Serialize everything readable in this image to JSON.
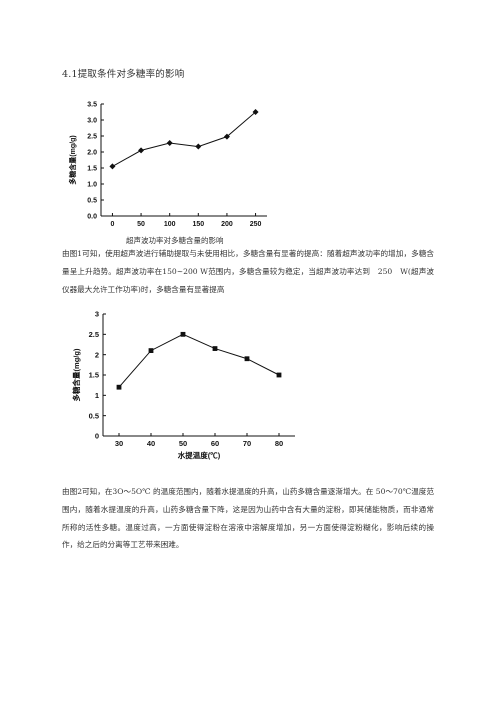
{
  "heading": "4.1提取条件对多糖率的影响",
  "figure1": {
    "caption": "超声波功率对多糖含量的影响",
    "chart_data": {
      "type": "line",
      "title": "",
      "xlabel": "",
      "ylabel": "多糖含量(mg/g)",
      "x": [
        0,
        50,
        100,
        150,
        200,
        250
      ],
      "series": [
        {
          "values": [
            1.55,
            2.05,
            2.28,
            2.17,
            2.48,
            3.25
          ]
        }
      ],
      "xticks": [
        "0",
        "50",
        "100",
        "150",
        "200",
        "250"
      ],
      "yticks": [
        "0.0",
        "0.5",
        "1.0",
        "1.5",
        "2.0",
        "2.5",
        "3.0",
        "3.5"
      ],
      "xlim": [
        -20,
        270
      ],
      "ylim": [
        0,
        3.5
      ],
      "marker": "diamond",
      "grid": false
    }
  },
  "paragraph1": "由图1可知，使用超声波进行辅助提取与未使用相比，多糖含量有显著的提高：随着超声波功率的增加，多糖含量呈上升趋势。超声波功率在150~200 W范围内，多糖含量较为稳定，当超声波功率达到　250　W(超声波仪器最大允许工作功率)时，多糖含量有显著提高",
  "figure2": {
    "chart_data": {
      "type": "line",
      "title": "",
      "xlabel": "水提温度(℃)",
      "ylabel": "多糖含量(mg/g)",
      "x": [
        30,
        40,
        50,
        60,
        70,
        80
      ],
      "series": [
        {
          "values": [
            1.2,
            2.1,
            2.5,
            2.15,
            1.9,
            1.5
          ]
        }
      ],
      "xticks": [
        "30",
        "40",
        "50",
        "60",
        "70",
        "80"
      ],
      "yticks": [
        "0",
        "0.5",
        "1",
        "1.5",
        "2",
        "2.5",
        "3"
      ],
      "xlim": [
        25,
        85
      ],
      "ylim": [
        0,
        3
      ],
      "marker": "square",
      "grid": false
    }
  },
  "paragraph2": "由图2可知，在3O～5O℃ 的温度范围内，随着水提温度的升高，山药多糖含量逐渐增大。在 50～70℃温度范围内，随着水提温度的升高，山药多糖含量下降，这是因为山药中含有大量的淀粉，即其储能物质，而非通常所称的活性多糖。温度过高，一方面使得淀粉在溶液中溶解度增加，另一方面使得淀粉糊化，影响后续的操作，给之后的分离等工艺带来困难。"
}
